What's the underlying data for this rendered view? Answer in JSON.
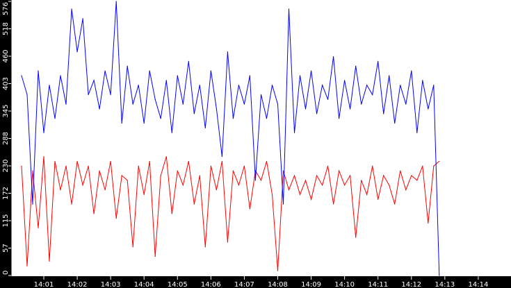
{
  "chart_data": {
    "type": "line",
    "title": "",
    "xlabel": "",
    "ylabel": "",
    "ylim": [
      0,
      576
    ],
    "xlim": [
      "14:00:00",
      "14:14:40"
    ],
    "grid": false,
    "legend": "none",
    "yticks": [
      "0",
      "57",
      "115",
      "172",
      "230",
      "288",
      "345",
      "403",
      "460",
      "518",
      "576"
    ],
    "ytick_values": [
      0,
      57.6,
      115.2,
      172.8,
      230.4,
      288,
      345.6,
      403.2,
      460.8,
      518.4,
      576
    ],
    "xticks": [
      "14:01",
      "14:02",
      "14:03",
      "14:04",
      "14:05",
      "14:06",
      "14:07",
      "14:08",
      "14:09",
      "14:10",
      "14:11",
      "14:12",
      "14:13",
      "14:14"
    ],
    "x": [
      "14:00:20",
      "14:00:30",
      "14:00:40",
      "14:00:50",
      "14:01:00",
      "14:01:10",
      "14:01:20",
      "14:01:30",
      "14:01:40",
      "14:01:50",
      "14:02:00",
      "14:02:10",
      "14:02:20",
      "14:02:30",
      "14:02:40",
      "14:02:50",
      "14:03:00",
      "14:03:10",
      "14:03:20",
      "14:03:30",
      "14:03:40",
      "14:03:50",
      "14:04:00",
      "14:04:10",
      "14:04:20",
      "14:04:30",
      "14:04:40",
      "14:04:50",
      "14:05:00",
      "14:05:10",
      "14:05:20",
      "14:05:30",
      "14:05:40",
      "14:05:50",
      "14:06:00",
      "14:06:10",
      "14:06:20",
      "14:06:30",
      "14:06:40",
      "14:06:50",
      "14:07:00",
      "14:07:10",
      "14:07:20",
      "14:07:30",
      "14:07:40",
      "14:07:50",
      "14:08:00",
      "14:08:10",
      "14:08:20",
      "14:08:30",
      "14:08:40",
      "14:08:50",
      "14:09:00",
      "14:09:10",
      "14:09:20",
      "14:09:30",
      "14:09:40",
      "14:09:50",
      "14:10:00",
      "14:10:10",
      "14:10:20",
      "14:10:30",
      "14:10:40",
      "14:10:50",
      "14:11:00",
      "14:11:10",
      "14:11:20",
      "14:11:30",
      "14:11:40",
      "14:11:50",
      "14:12:00",
      "14:12:10",
      "14:12:20",
      "14:12:30",
      "14:12:40",
      "14:12:50"
    ],
    "series": [
      {
        "color": "#0000ff",
        "values": [
          420,
          380,
          150,
          430,
          300,
          400,
          330,
          420,
          360,
          560,
          470,
          540,
          380,
          410,
          350,
          430,
          380,
          576,
          320,
          440,
          360,
          400,
          320,
          430,
          370,
          330,
          410,
          300,
          420,
          360,
          450,
          340,
          400,
          310,
          430,
          350,
          250,
          470,
          330,
          400,
          360,
          420,
          200,
          380,
          330,
          400,
          360,
          150,
          560,
          300,
          420,
          350,
          430,
          340,
          400,
          370,
          460,
          330,
          410,
          350,
          440,
          360,
          400,
          380,
          450,
          340,
          420,
          320,
          400,
          360,
          430,
          300,
          410,
          350,
          400,
          0
        ]
      },
      {
        "color": "#ff0000",
        "values": [
          230,
          20,
          220,
          100,
          250,
          30,
          240,
          180,
          230,
          150,
          240,
          190,
          230,
          130,
          220,
          180,
          240,
          120,
          210,
          200,
          60,
          230,
          170,
          240,
          40,
          210,
          250,
          130,
          220,
          190,
          240,
          150,
          210,
          60,
          230,
          180,
          240,
          70,
          220,
          190,
          230,
          140,
          220,
          200,
          240,
          170,
          10,
          220,
          180,
          210,
          170,
          200,
          160,
          210,
          190,
          230,
          150,
          220,
          190,
          210,
          80,
          200,
          170,
          230,
          160,
          210,
          190,
          150,
          220,
          180,
          210,
          200,
          230,
          110,
          230,
          240
        ]
      }
    ]
  }
}
